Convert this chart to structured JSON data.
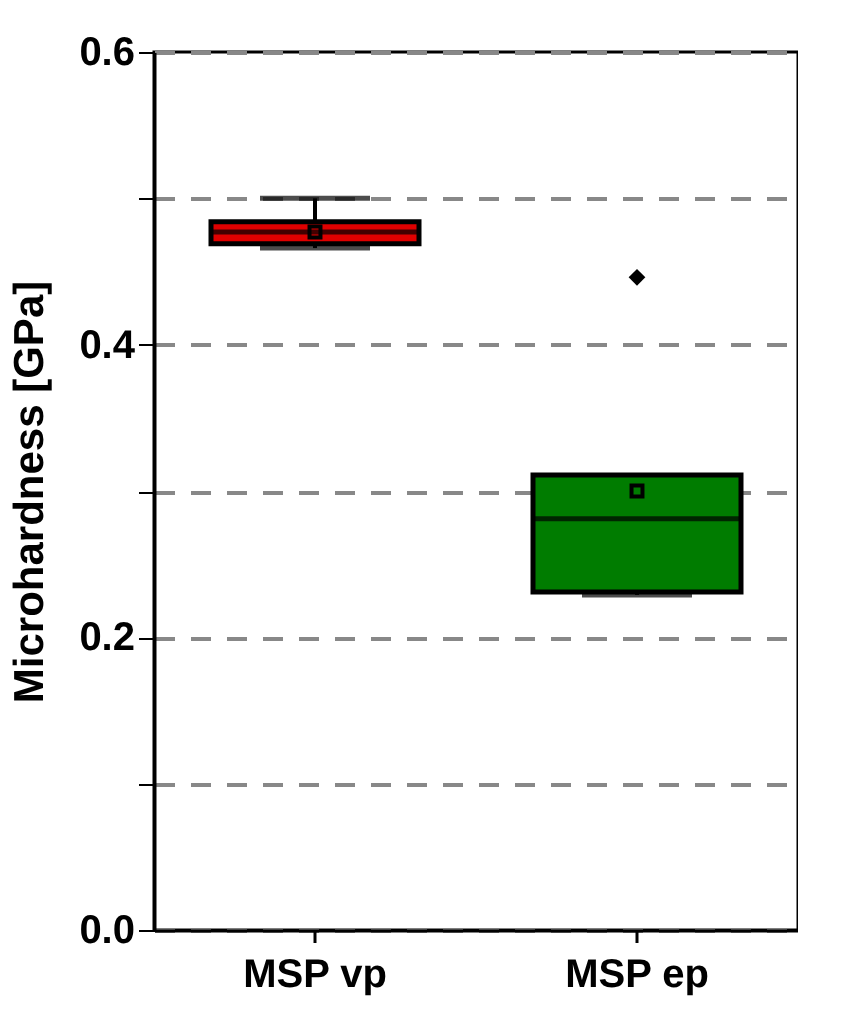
{
  "chart_data": {
    "type": "box",
    "ylabel": "Microhardness [GPa]",
    "categories": [
      "MSP vp",
      "MSP ep"
    ],
    "boxes": [
      {
        "low": 0.466,
        "q1": 0.469,
        "median": 0.477,
        "q3": 0.484,
        "high": 0.5,
        "mean": 0.477
      },
      {
        "low": 0.229,
        "q1": 0.231,
        "median": 0.281,
        "q3": 0.311,
        "high": 0.311,
        "mean": 0.3,
        "outliers": [
          0.446
        ]
      }
    ],
    "colors": [
      "#e00000",
      "#007c00"
    ],
    "ylim": [
      0,
      0.6
    ],
    "yticks": [
      {
        "value": 0,
        "label": "0.0"
      },
      {
        "value": 0.1,
        "label": null
      },
      0.2,
      {
        "value": 0.3,
        "label": null
      },
      0.4,
      {
        "value": 0.5,
        "label": null
      },
      0.6
    ],
    "grid": "y"
  }
}
